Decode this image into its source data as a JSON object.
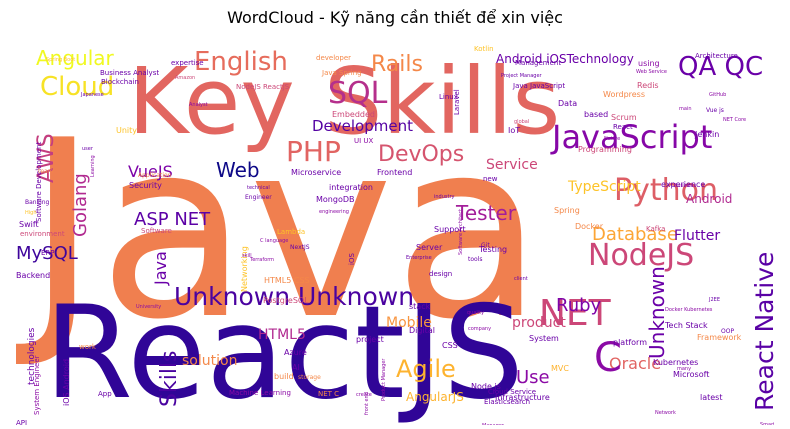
{
  "chart_data": {
    "type": "wordcloud",
    "title": "WordCloud - Kỹ năng cần thiết để xin việc",
    "colormap": "plasma",
    "words": [
      {
        "text": "Java",
        "weight": 100,
        "color": "#f07f4f"
      },
      {
        "text": "ReactJS",
        "weight": 86,
        "color": "#300597"
      },
      {
        "text": "Key Skills",
        "weight": 55,
        "color": "#e26660"
      },
      {
        "text": "JavaScript",
        "weight": 25,
        "color": "#8607a7"
      },
      {
        "text": "Python",
        "weight": 22,
        "color": "#dd5e66"
      },
      {
        "text": "NodeJS",
        "weight": 20,
        "color": "#cc4778"
      },
      {
        "text": "Unknown Unknown",
        "weight": 19,
        "color": "#4a02a0"
      },
      {
        "text": "React Native",
        "weight": 18,
        "color": "#5901a5"
      },
      {
        "text": "NET",
        "weight": 24,
        "color": "#cc4778"
      },
      {
        "text": "Agile",
        "weight": 18,
        "color": "#fdb32f"
      },
      {
        "text": "Cloud",
        "weight": 18,
        "color": "#f7e225"
      },
      {
        "text": "Angular",
        "weight": 14,
        "color": "#f0f921"
      },
      {
        "text": "English",
        "weight": 18,
        "color": "#e66c5c"
      },
      {
        "text": "SQL",
        "weight": 19,
        "color": "#b52f8c"
      },
      {
        "text": "Rails",
        "weight": 15,
        "color": "#f48849"
      },
      {
        "text": "PHP",
        "weight": 18,
        "color": "#e16462"
      },
      {
        "text": "DevOps",
        "weight": 14,
        "color": "#d5546e"
      },
      {
        "text": "QA QC",
        "weight": 16,
        "color": "#6a00a8"
      },
      {
        "text": "AWS",
        "weight": 15,
        "color": "#c43e7f"
      },
      {
        "text": "Golang",
        "weight": 14,
        "color": "#b12a90"
      },
      {
        "text": "MySQL",
        "weight": 13,
        "color": "#3e049c"
      },
      {
        "text": "Database",
        "weight": 14,
        "color": "#fca636"
      },
      {
        "text": "Tester",
        "weight": 13,
        "color": "#a31e9a"
      },
      {
        "text": "Ruby",
        "weight": 13,
        "color": "#7e03a8"
      },
      {
        "text": "Oracle",
        "weight": 10,
        "color": "#e16462"
      },
      {
        "text": "Mobile",
        "weight": 9,
        "color": "#f89540"
      },
      {
        "text": "Web",
        "weight": 12,
        "color": "#0d0887"
      },
      {
        "text": "ASP NET",
        "weight": 12,
        "color": "#5c01a6"
      },
      {
        "text": "VueJS",
        "weight": 10,
        "color": "#7d03a8"
      },
      {
        "text": "Development",
        "weight": 10,
        "color": "#5402a3"
      },
      {
        "text": "Skills",
        "weight": 11,
        "color": "#4903a0"
      },
      {
        "text": "Unknown",
        "weight": 11,
        "color": "#6a00a8"
      },
      {
        "text": "Use",
        "weight": 11,
        "color": "#8b0aa5"
      },
      {
        "text": "C",
        "weight": 11,
        "color": "#8b0aa5"
      },
      {
        "text": "Service",
        "weight": 9,
        "color": "#cc4778"
      },
      {
        "text": "TypeScript",
        "weight": 8,
        "color": "#fdc328"
      },
      {
        "text": "Android",
        "weight": 8,
        "color": "#b12a90"
      },
      {
        "text": "Flutter",
        "weight": 8,
        "color": "#6a00a8"
      },
      {
        "text": "Android iOSTechnology",
        "weight": 8,
        "color": "#6a00a8"
      },
      {
        "text": "AngularJS",
        "weight": 8,
        "color": "#fdb32f"
      },
      {
        "text": "HTML5",
        "weight": 8,
        "color": "#b12a90"
      },
      {
        "text": "solution",
        "weight": 8,
        "color": "#f48849"
      },
      {
        "text": "product",
        "weight": 8,
        "color": "#cc4778"
      },
      {
        "text": "Java",
        "weight": 8,
        "color": "#6a00a8"
      },
      {
        "text": "Microservice",
        "weight": 5,
        "color": "#6a00a8"
      },
      {
        "text": "Frontend",
        "weight": 5,
        "color": "#6a00a8"
      },
      {
        "text": "Security",
        "weight": 5,
        "color": "#6a00a8"
      },
      {
        "text": "integration",
        "weight": 5,
        "color": "#6a00a8"
      },
      {
        "text": "MongoDB",
        "weight": 5,
        "color": "#6a00a8"
      },
      {
        "text": "Embedded",
        "weight": 5,
        "color": "#cc4778"
      },
      {
        "text": "UI UX",
        "weight": 4,
        "color": "#8b0aa5"
      },
      {
        "text": "Spring",
        "weight": 5,
        "color": "#f48849"
      },
      {
        "text": "Support",
        "weight": 5,
        "color": "#6a00a8"
      },
      {
        "text": "Kafka",
        "weight": 4,
        "color": "#cc4778"
      },
      {
        "text": "Docker",
        "weight": 5,
        "color": "#f48849"
      },
      {
        "text": "Swift",
        "weight": 5,
        "color": "#6a00a8"
      },
      {
        "text": "Server",
        "weight": 5,
        "color": "#6a00a8"
      },
      {
        "text": "Testing",
        "weight": 5,
        "color": "#6a00a8"
      },
      {
        "text": "Redis",
        "weight": 5,
        "color": "#cc4778"
      },
      {
        "text": "Scrum",
        "weight": 5,
        "color": "#cc4778"
      },
      {
        "text": "React",
        "weight": 5,
        "color": "#6a00a8"
      },
      {
        "text": "Jenkin",
        "weight": 5,
        "color": "#6a00a8"
      },
      {
        "text": "IoT",
        "weight": 5,
        "color": "#6a00a8"
      },
      {
        "text": "Data",
        "weight": 5,
        "color": "#6a00a8"
      },
      {
        "text": "based",
        "weight": 5,
        "color": "#6a00a8"
      },
      {
        "text": "Programming",
        "weight": 5,
        "color": "#cc4778"
      },
      {
        "text": "experience",
        "weight": 5,
        "color": "#6a00a8"
      },
      {
        "text": "Tech Stack",
        "weight": 5,
        "color": "#6a00a8"
      },
      {
        "text": "Kubernetes",
        "weight": 5,
        "color": "#6a00a8"
      },
      {
        "text": "Microsoft",
        "weight": 5,
        "color": "#6a00a8"
      },
      {
        "text": "Framework",
        "weight": 5,
        "color": "#f48849"
      },
      {
        "text": "latest",
        "weight": 5,
        "color": "#6a00a8"
      },
      {
        "text": "Infrastructure",
        "weight": 5,
        "color": "#6a00a8"
      },
      {
        "text": "Node js",
        "weight": 5,
        "color": "#6a00a8"
      },
      {
        "text": "CSS",
        "weight": 5,
        "color": "#6a00a8"
      },
      {
        "text": "PostgreSQL",
        "weight": 5,
        "color": "#cc4778"
      },
      {
        "text": "HTML5 CSS",
        "weight": 5,
        "color": "#f48849"
      },
      {
        "text": "Networking",
        "weight": 5,
        "color": "#fdc328"
      },
      {
        "text": "Azure",
        "weight": 5,
        "color": "#6a00a8"
      },
      {
        "text": "AI",
        "weight": 5,
        "color": "#6a00a8"
      },
      {
        "text": "build",
        "weight": 5,
        "color": "#f48849"
      },
      {
        "text": "Machine Learning",
        "weight": 4,
        "color": "#8b0aa5"
      },
      {
        "text": "Backend",
        "weight": 5,
        "color": "#6a00a8"
      },
      {
        "text": "technologies",
        "weight": 5,
        "color": "#6a00a8"
      },
      {
        "text": "iOS Android",
        "weight": 5,
        "color": "#6a00a8"
      },
      {
        "text": "System Engineer",
        "weight": 4,
        "color": "#8b0aa5"
      },
      {
        "text": "Business Analyst",
        "weight": 5,
        "color": "#6a00a8"
      },
      {
        "text": "Blockchain",
        "weight": 5,
        "color": "#6a00a8"
      },
      {
        "text": "NodeJS ReactJS",
        "weight": 5,
        "color": "#cc4778"
      },
      {
        "text": "Java Spring",
        "weight": 5,
        "color": "#f48849"
      },
      {
        "text": "Java JavaScript",
        "weight": 5,
        "color": "#6a00a8"
      },
      {
        "text": "Management",
        "weight": 5,
        "color": "#6a00a8"
      },
      {
        "text": "Architecture",
        "weight": 5,
        "color": "#6a00a8"
      },
      {
        "text": "Software Development",
        "weight": 4,
        "color": "#6a00a8"
      },
      {
        "text": "Linux",
        "weight": 5,
        "color": "#6a00a8"
      },
      {
        "text": "Wordpress",
        "weight": 5,
        "color": "#f48849"
      },
      {
        "text": "expertise",
        "weight": 5,
        "color": "#6a00a8"
      },
      {
        "text": "developer",
        "weight": 4,
        "color": "#f48849"
      },
      {
        "text": "Kotlin",
        "weight": 4,
        "color": "#fdc328"
      },
      {
        "text": "Laravel",
        "weight": 4,
        "color": "#6a00a8"
      },
      {
        "text": "Unity",
        "weight": 5,
        "color": "#fdc328"
      },
      {
        "text": "Application",
        "weight": 4,
        "color": "#f48849"
      },
      {
        "text": "Software",
        "weight": 4,
        "color": "#cc4778"
      },
      {
        "text": "Banking",
        "weight": 4,
        "color": "#6a00a8"
      },
      {
        "text": "environment",
        "weight": 4,
        "color": "#cc4778"
      },
      {
        "text": "Engineer",
        "weight": 4,
        "color": "#6a00a8"
      },
      {
        "text": "Lambda",
        "weight": 4,
        "color": "#fdc328"
      },
      {
        "text": "NextJS",
        "weight": 4,
        "color": "#6a00a8"
      },
      {
        "text": "Git",
        "weight": 4,
        "color": "#6a00a8"
      },
      {
        "text": "tools",
        "weight": 4,
        "color": "#6a00a8"
      },
      {
        "text": "Digital",
        "weight": 5,
        "color": "#6a00a8"
      },
      {
        "text": "design",
        "weight": 5,
        "color": "#6a00a8"
      },
      {
        "text": "stack",
        "weight": 5,
        "color": "#6a00a8"
      },
      {
        "text": "System",
        "weight": 5,
        "color": "#6a00a8"
      },
      {
        "text": "project",
        "weight": 5,
        "color": "#6a00a8"
      },
      {
        "text": "MVC",
        "weight": 5,
        "color": "#fdb32f"
      },
      {
        "text": "NET C",
        "weight": 4,
        "color": "#f48849"
      },
      {
        "text": "platform",
        "weight": 5,
        "color": "#6a00a8"
      },
      {
        "text": "Cloud Service",
        "weight": 4,
        "color": "#6a00a8"
      },
      {
        "text": "Elasticsearch",
        "weight": 4,
        "color": "#6a00a8"
      },
      {
        "text": "App",
        "weight": 4,
        "color": "#6a00a8"
      },
      {
        "text": "API",
        "weight": 4,
        "color": "#6a00a8"
      },
      {
        "text": "storage",
        "weight": 4,
        "color": "#f48849"
      },
      {
        "text": "work",
        "weight": 4,
        "color": "#f48849"
      },
      {
        "text": "ERP",
        "weight": 4,
        "color": "#6a00a8"
      },
      {
        "text": "new",
        "weight": 4,
        "color": "#6a00a8"
      },
      {
        "text": "iOS",
        "weight": 4,
        "color": "#6a00a8"
      },
      {
        "text": "Vue js",
        "weight": 4,
        "color": "#6a00a8"
      },
      {
        "text": "GitHub",
        "weight": 3,
        "color": "#8b0aa5"
      },
      {
        "text": "main",
        "weight": 3,
        "color": "#8b0aa5"
      },
      {
        "text": "team",
        "weight": 4,
        "color": "#f48849"
      },
      {
        "text": "OOP",
        "weight": 4,
        "color": "#6a00a8"
      },
      {
        "text": "global",
        "weight": 3,
        "color": "#cc4778"
      },
      {
        "text": "Native",
        "weight": 3,
        "color": "#8b0aa5"
      },
      {
        "text": "Amazon",
        "weight": 3,
        "color": "#cc4778"
      },
      {
        "text": "Japanese",
        "weight": 3,
        "color": "#6a00a8"
      },
      {
        "text": "Analyst",
        "weight": 3,
        "color": "#8b0aa5"
      },
      {
        "text": "industry",
        "weight": 3,
        "color": "#6a00a8"
      },
      {
        "text": "technical",
        "weight": 4,
        "color": "#6a00a8"
      },
      {
        "text": "Enterprise",
        "weight": 3,
        "color": "#6a00a8"
      },
      {
        "text": "client",
        "weight": 3,
        "color": "#6a00a8"
      },
      {
        "text": "J2EE",
        "weight": 3,
        "color": "#6a00a8"
      },
      {
        "text": "Docker Kubernetes",
        "weight": 3,
        "color": "#8b0aa5"
      },
      {
        "text": "Product Manager",
        "weight": 3,
        "color": "#8b0aa5"
      },
      {
        "text": "front end",
        "weight": 3,
        "color": "#8b0aa5"
      },
      {
        "text": "Network",
        "weight": 3,
        "color": "#8b0aa5"
      },
      {
        "text": "Project Manager",
        "weight": 3,
        "color": "#6a00a8"
      },
      {
        "text": "C language",
        "weight": 3,
        "color": "#8b0aa5"
      },
      {
        "text": "University",
        "weight": 3,
        "color": "#8b0aa5"
      },
      {
        "text": "Business",
        "weight": 3,
        "color": "#8b0aa5"
      },
      {
        "text": "Software Architect",
        "weight": 3,
        "color": "#8b0aa5"
      },
      {
        "text": "Terraform",
        "weight": 3,
        "color": "#8b0aa5"
      },
      {
        "text": "user",
        "weight": 3,
        "color": "#6a00a8"
      },
      {
        "text": "High",
        "weight": 3,
        "color": "#fdc328"
      },
      {
        "text": "Spring Boot",
        "weight": 3,
        "color": "#fdc328"
      },
      {
        "text": "Learning",
        "weight": 3,
        "color": "#8b0aa5"
      },
      {
        "text": "engineering",
        "weight": 3,
        "color": "#8b0aa5"
      },
      {
        "text": "skill",
        "weight": 3,
        "color": "#8b0aa5"
      },
      {
        "text": "quality",
        "weight": 3,
        "color": "#8b0aa5"
      },
      {
        "text": "company",
        "weight": 3,
        "color": "#8b0aa5"
      },
      {
        "text": "Manager",
        "weight": 3,
        "color": "#8b0aa5"
      },
      {
        "text": "Smart",
        "weight": 3,
        "color": "#8b0aa5"
      },
      {
        "text": "many",
        "weight": 3,
        "color": "#8b0aa5"
      },
      {
        "text": "create",
        "weight": 3,
        "color": "#8b0aa5"
      },
      {
        "text": "NET Core",
        "weight": 3,
        "color": "#8b0aa5"
      },
      {
        "text": "using",
        "weight": 4,
        "color": "#8b0aa5"
      },
      {
        "text": "Web Service",
        "weight": 3,
        "color": "#8b0aa5"
      }
    ]
  }
}
